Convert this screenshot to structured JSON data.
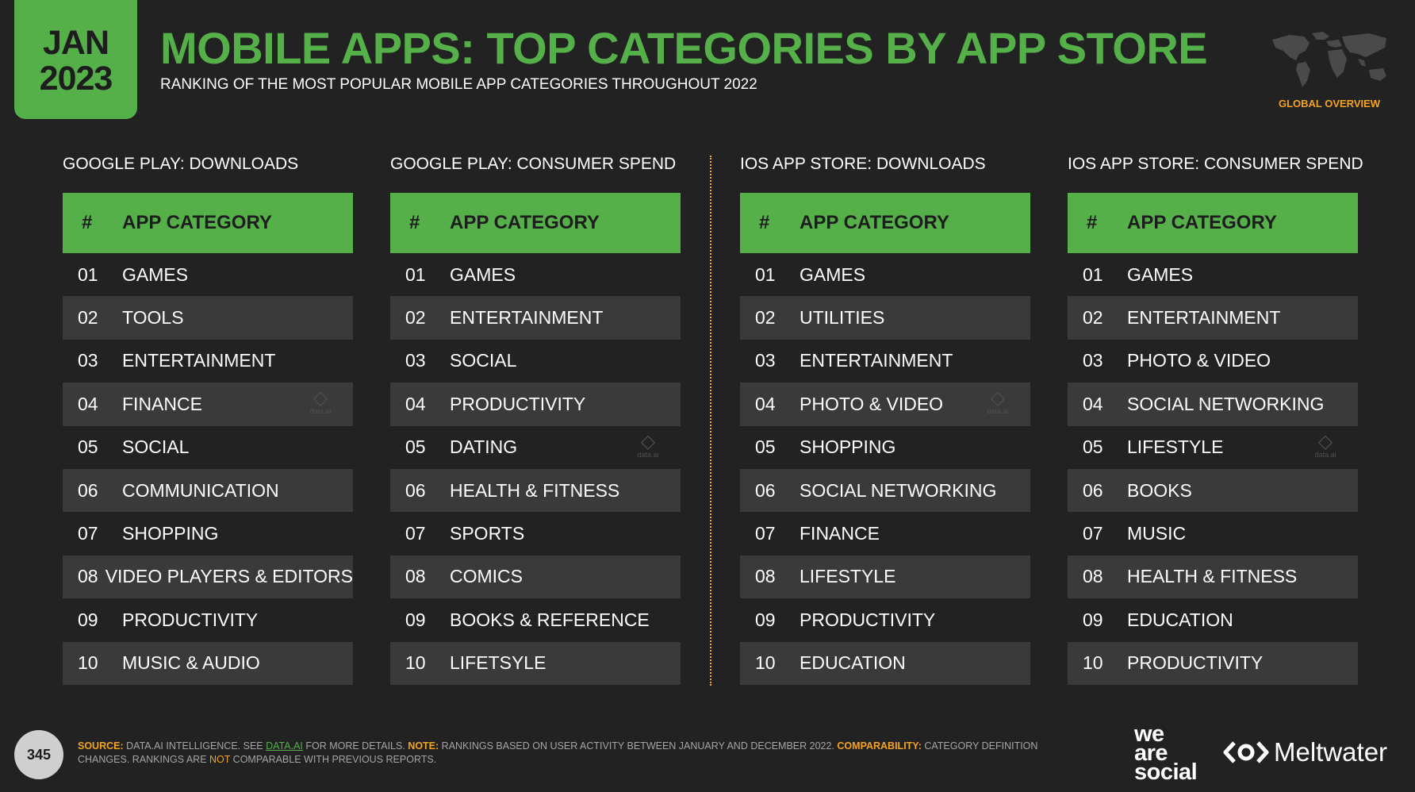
{
  "badge": {
    "month": "JAN",
    "year": "2023"
  },
  "title": "MOBILE APPS: TOP CATEGORIES BY APP STORE",
  "subtitle": "RANKING OF THE MOST POPULAR MOBILE APP CATEGORIES THROUGHOUT 2022",
  "global_label": "GLOBAL OVERVIEW",
  "header_labels": {
    "hash": "#",
    "category": "APP CATEGORY"
  },
  "watermark_text": "data.ai",
  "columns": [
    {
      "heading": "GOOGLE PLAY: DOWNLOADS",
      "rows": [
        {
          "rank": "01",
          "category": "GAMES"
        },
        {
          "rank": "02",
          "category": "TOOLS"
        },
        {
          "rank": "03",
          "category": "ENTERTAINMENT"
        },
        {
          "rank": "04",
          "category": "FINANCE"
        },
        {
          "rank": "05",
          "category": "SOCIAL"
        },
        {
          "rank": "06",
          "category": "COMMUNICATION"
        },
        {
          "rank": "07",
          "category": "SHOPPING"
        },
        {
          "rank": "08",
          "category": "VIDEO PLAYERS & EDITORS"
        },
        {
          "rank": "09",
          "category": "PRODUCTIVITY"
        },
        {
          "rank": "10",
          "category": "MUSIC & AUDIO"
        }
      ]
    },
    {
      "heading": "GOOGLE PLAY: CONSUMER SPEND",
      "rows": [
        {
          "rank": "01",
          "category": "GAMES"
        },
        {
          "rank": "02",
          "category": "ENTERTAINMENT"
        },
        {
          "rank": "03",
          "category": "SOCIAL"
        },
        {
          "rank": "04",
          "category": "PRODUCTIVITY"
        },
        {
          "rank": "05",
          "category": "DATING"
        },
        {
          "rank": "06",
          "category": "HEALTH & FITNESS"
        },
        {
          "rank": "07",
          "category": "SPORTS"
        },
        {
          "rank": "08",
          "category": "COMICS"
        },
        {
          "rank": "09",
          "category": "BOOKS & REFERENCE"
        },
        {
          "rank": "10",
          "category": "LIFETSYLE"
        }
      ]
    },
    {
      "heading": "IOS APP STORE: DOWNLOADS",
      "rows": [
        {
          "rank": "01",
          "category": "GAMES"
        },
        {
          "rank": "02",
          "category": "UTILITIES"
        },
        {
          "rank": "03",
          "category": "ENTERTAINMENT"
        },
        {
          "rank": "04",
          "category": "PHOTO & VIDEO"
        },
        {
          "rank": "05",
          "category": "SHOPPING"
        },
        {
          "rank": "06",
          "category": "SOCIAL NETWORKING"
        },
        {
          "rank": "07",
          "category": "FINANCE"
        },
        {
          "rank": "08",
          "category": "LIFESTYLE"
        },
        {
          "rank": "09",
          "category": "PRODUCTIVITY"
        },
        {
          "rank": "10",
          "category": "EDUCATION"
        }
      ]
    },
    {
      "heading": "IOS APP STORE: CONSUMER SPEND",
      "rows": [
        {
          "rank": "01",
          "category": "GAMES"
        },
        {
          "rank": "02",
          "category": "ENTERTAINMENT"
        },
        {
          "rank": "03",
          "category": "PHOTO & VIDEO"
        },
        {
          "rank": "04",
          "category": "SOCIAL NETWORKING"
        },
        {
          "rank": "05",
          "category": "LIFESTYLE"
        },
        {
          "rank": "06",
          "category": "BOOKS"
        },
        {
          "rank": "07",
          "category": "MUSIC"
        },
        {
          "rank": "08",
          "category": "HEALTH & FITNESS"
        },
        {
          "rank": "09",
          "category": "EDUCATION"
        },
        {
          "rank": "10",
          "category": "PRODUCTIVITY"
        }
      ]
    }
  ],
  "footer": {
    "page_number": "345",
    "source_label": "SOURCE:",
    "source_text_1": " DATA.AI INTELLIGENCE. SEE ",
    "source_link": "DATA.AI",
    "source_text_2": " FOR MORE DETAILS. ",
    "note_label": "NOTE:",
    "note_text": " RANKINGS BASED ON USER ACTIVITY BETWEEN JANUARY AND DECEMBER 2022. ",
    "comparability_label": "COMPARABILITY:",
    "comparability_text_1": " CATEGORY DEFINITION CHANGES. RANKINGS ARE ",
    "comparability_not": "NOT",
    "comparability_text_2": " COMPARABLE WITH PREVIOUS REPORTS."
  },
  "logos": {
    "was_line1": "we",
    "was_line2": "are",
    "was_line3": "social",
    "meltwater": "Meltwater"
  },
  "colors": {
    "background": "#222222",
    "accent_green": "#55b04a",
    "accent_orange": "#f4a31c",
    "row_alt": "#3a3a3a"
  }
}
